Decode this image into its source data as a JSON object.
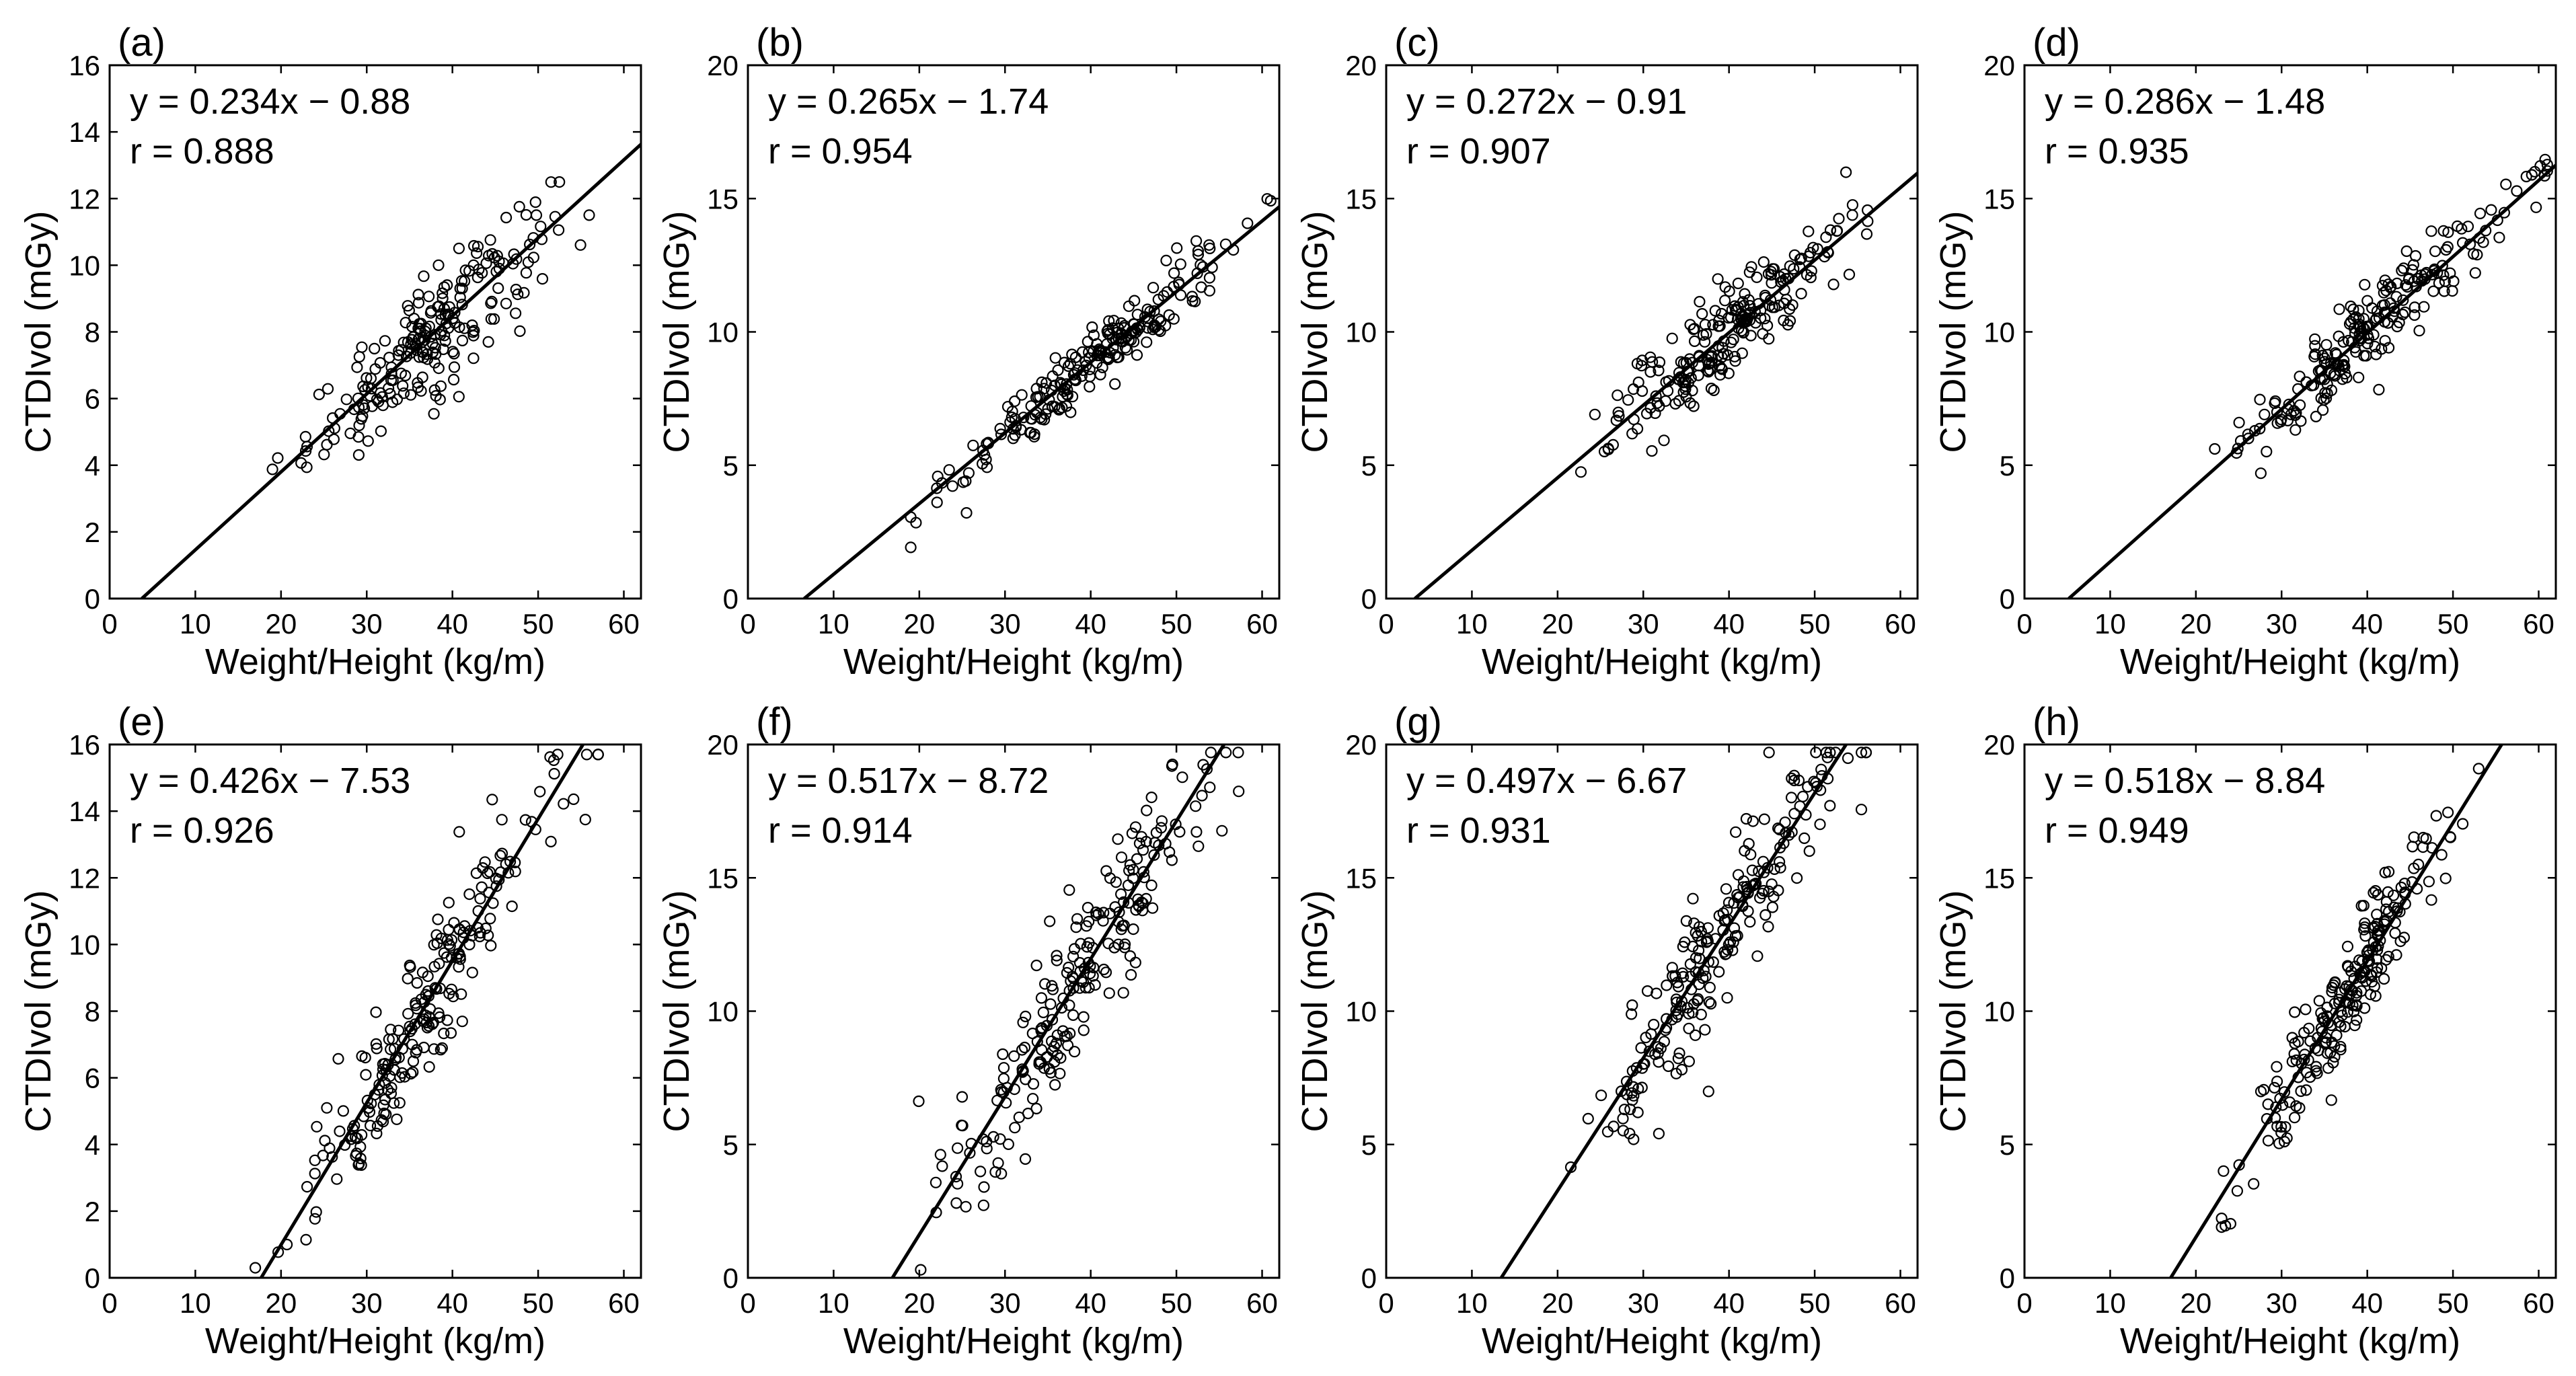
{
  "figure": {
    "panel_labels": [
      "(a)",
      "(b)",
      "(c)",
      "(d)",
      "(e)",
      "(f)",
      "(g)",
      "(h)"
    ]
  },
  "chart_data": [
    {
      "type": "scatter",
      "panel": "(a)",
      "equation": "y = 0.234x − 0.88",
      "r_text": "r = 0.888",
      "slope": 0.234,
      "intercept": -0.88,
      "r": 0.888,
      "xlabel": "Weight/Height (kg/m)",
      "ylabel": "CTDIvol (mGy)",
      "xlim": [
        0,
        62
      ],
      "ylim": [
        0,
        16
      ],
      "xticks": [
        0,
        10,
        20,
        30,
        40,
        50,
        60
      ],
      "yticks": [
        0,
        2,
        4,
        6,
        8,
        10,
        12,
        14,
        16
      ],
      "grid": false,
      "marker": "open-circle",
      "points_x_range": [
        19,
        56
      ],
      "n_points": 220,
      "point_scatter_sd": 0.85
    },
    {
      "type": "scatter",
      "panel": "(b)",
      "equation": "y = 0.265x − 1.74",
      "r_text": "r = 0.954",
      "slope": 0.265,
      "intercept": -1.74,
      "r": 0.954,
      "xlabel": "Weight/Height (kg/m)",
      "ylabel": "CTDIvol (mGy)",
      "xlim": [
        0,
        62
      ],
      "ylim": [
        0,
        20
      ],
      "xticks": [
        0,
        10,
        20,
        30,
        40,
        50,
        60
      ],
      "yticks": [
        0,
        5,
        10,
        15,
        20
      ],
      "grid": false,
      "marker": "open-circle",
      "points_x_range": [
        19,
        61
      ],
      "n_points": 220,
      "point_scatter_sd": 0.6
    },
    {
      "type": "scatter",
      "panel": "(c)",
      "equation": "y = 0.272x − 0.91",
      "r_text": "r = 0.907",
      "slope": 0.272,
      "intercept": -0.91,
      "r": 0.907,
      "xlabel": "Weight/Height (kg/m)",
      "ylabel": "CTDIvol (mGy)",
      "xlim": [
        0,
        62
      ],
      "ylim": [
        0,
        20
      ],
      "xticks": [
        0,
        10,
        20,
        30,
        40,
        50,
        60
      ],
      "yticks": [
        0,
        5,
        10,
        15,
        20
      ],
      "grid": false,
      "marker": "open-circle",
      "points_x_range": [
        21,
        59
      ],
      "n_points": 220,
      "point_scatter_sd": 0.9
    },
    {
      "type": "scatter",
      "panel": "(d)",
      "equation": "y = 0.286x − 1.48",
      "r_text": "r = 0.935",
      "slope": 0.286,
      "intercept": -1.48,
      "r": 0.935,
      "xlabel": "Weight/Height (kg/m)",
      "ylabel": "CTDIvol (mGy)",
      "xlim": [
        0,
        62
      ],
      "ylim": [
        0,
        20
      ],
      "xticks": [
        0,
        10,
        20,
        30,
        40,
        50,
        60
      ],
      "yticks": [
        0,
        5,
        10,
        15,
        20
      ],
      "grid": false,
      "marker": "open-circle",
      "points_x_range": [
        20,
        61
      ],
      "n_points": 220,
      "point_scatter_sd": 0.75
    },
    {
      "type": "scatter",
      "panel": "(e)",
      "equation": "y = 0.426x − 7.53",
      "r_text": "r = 0.926",
      "slope": 0.426,
      "intercept": -7.53,
      "r": 0.926,
      "xlabel": "Weight/Height (kg/m)",
      "ylabel": "CTDIvol (mGy)",
      "xlim": [
        0,
        62
      ],
      "ylim": [
        0,
        16
      ],
      "xticks": [
        0,
        10,
        20,
        30,
        40,
        50,
        60
      ],
      "yticks": [
        0,
        2,
        4,
        6,
        8,
        10,
        12,
        14,
        16
      ],
      "grid": false,
      "marker": "open-circle",
      "points_x_range": [
        17,
        57
      ],
      "n_points": 220,
      "point_scatter_sd": 1.1
    },
    {
      "type": "scatter",
      "panel": "(f)",
      "equation": "y = 0.517x − 8.72",
      "r_text": "r = 0.914",
      "slope": 0.517,
      "intercept": -8.72,
      "r": 0.914,
      "xlabel": "Weight/Height (kg/m)",
      "ylabel": "CTDIvol (mGy)",
      "xlim": [
        0,
        62
      ],
      "ylim": [
        0,
        20
      ],
      "xticks": [
        0,
        10,
        20,
        30,
        40,
        50,
        60
      ],
      "yticks": [
        0,
        5,
        10,
        15,
        20
      ],
      "grid": false,
      "marker": "open-circle",
      "points_x_range": [
        17,
        58
      ],
      "n_points": 220,
      "point_scatter_sd": 1.4
    },
    {
      "type": "scatter",
      "panel": "(g)",
      "equation": "y = 0.497x − 6.67",
      "r_text": "r = 0.931",
      "slope": 0.497,
      "intercept": -6.67,
      "r": 0.931,
      "xlabel": "Weight/Height (kg/m)",
      "ylabel": "CTDIvol (mGy)",
      "xlim": [
        0,
        62
      ],
      "ylim": [
        0,
        20
      ],
      "xticks": [
        0,
        10,
        20,
        30,
        40,
        50,
        60
      ],
      "yticks": [
        0,
        5,
        10,
        15,
        20
      ],
      "grid": false,
      "marker": "open-circle",
      "points_x_range": [
        21,
        56
      ],
      "n_points": 220,
      "point_scatter_sd": 1.2
    },
    {
      "type": "scatter",
      "panel": "(h)",
      "equation": "y = 0.518x − 8.84",
      "r_text": "r = 0.949",
      "slope": 0.518,
      "intercept": -8.84,
      "r": 0.949,
      "xlabel": "Weight/Height (kg/m)",
      "ylabel": "CTDIvol (mGy)",
      "xlim": [
        0,
        62
      ],
      "ylim": [
        0,
        20
      ],
      "xticks": [
        0,
        10,
        20,
        30,
        40,
        50,
        60
      ],
      "yticks": [
        0,
        5,
        10,
        15,
        20
      ],
      "grid": false,
      "marker": "open-circle",
      "points_x_range": [
        23,
        53
      ],
      "n_points": 220,
      "point_scatter_sd": 1.0
    }
  ]
}
